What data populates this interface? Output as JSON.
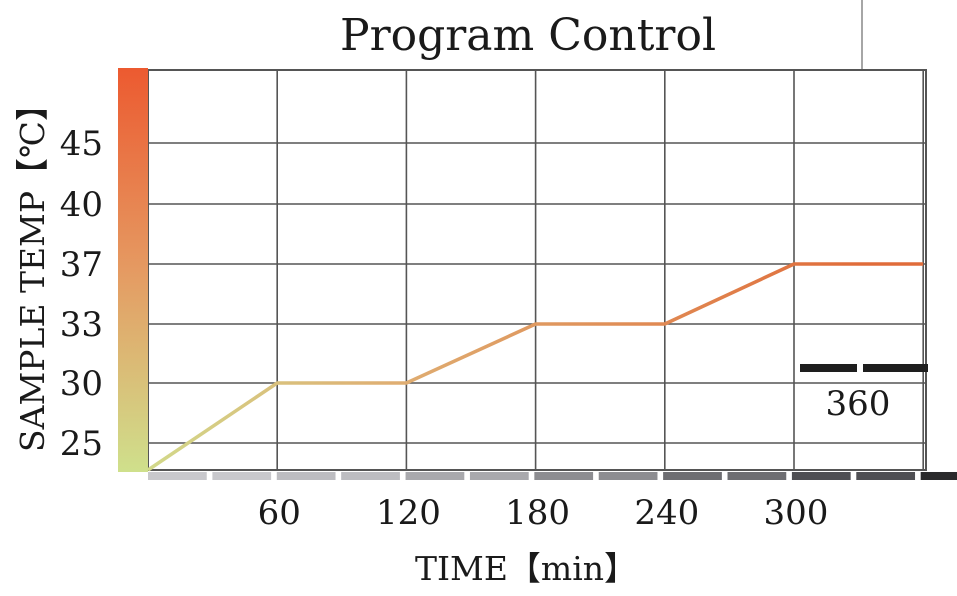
{
  "chart_data": {
    "type": "line",
    "title": "Program Control",
    "xlabel": "TIME【min】",
    "ylabel": "SAMPLE TEMP【℃】",
    "x_ticks": [
      60,
      120,
      180,
      240,
      300
    ],
    "y_ticks": [
      25,
      30,
      33,
      37,
      40,
      45
    ],
    "end_marker_label": "360",
    "series": [
      {
        "x": [
          0,
          60,
          120,
          180,
          240,
          300,
          360
        ],
        "y": [
          23,
          30,
          30,
          33,
          33,
          37,
          37
        ]
      }
    ],
    "grid": true,
    "colors": {
      "line_start": "#d2d98a",
      "line_end": "#e06c3a",
      "grid": "#555555",
      "bar_low": "#cfe08c",
      "bar_high": "#ec5a30",
      "x_segments": [
        "#c8c8cc",
        "#bdbdc1",
        "#a9a9ad",
        "#8d8d91",
        "#6e6e72",
        "#4f4f53",
        "#2a2a2c"
      ]
    }
  }
}
